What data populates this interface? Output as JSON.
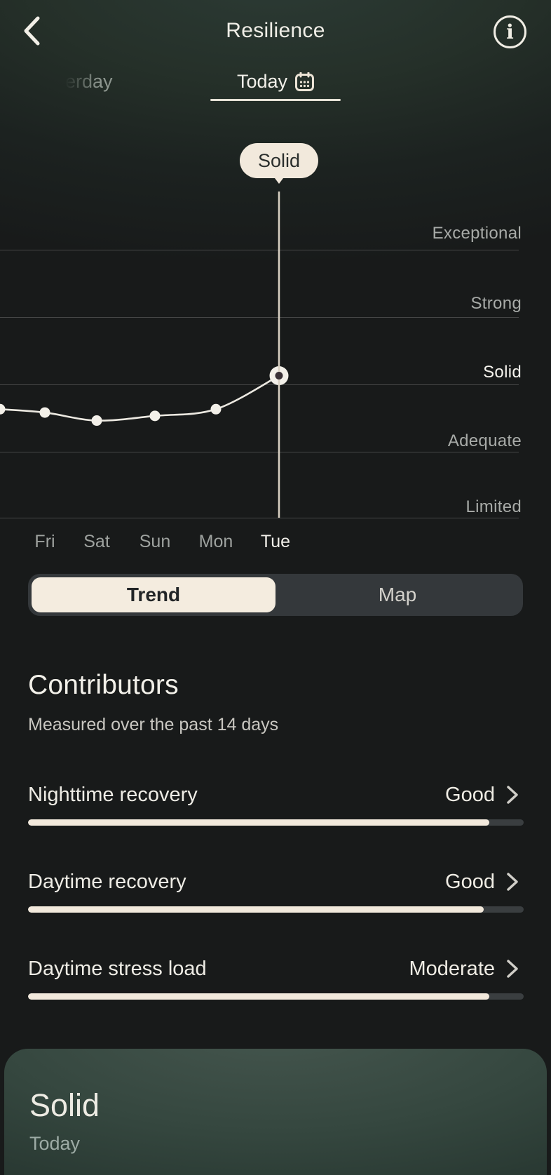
{
  "colors": {
    "background": "#181a1a",
    "header_teal": "#263630",
    "accent_cream": "#f2e9dc",
    "badge_text": "#2b2e2c",
    "gridline": "rgba(255,255,255,0.20)",
    "muted_label": "#a8aba8",
    "active_label": "#f5f3ed",
    "segment_container": "#34383b",
    "bar_track": "#3a3e40",
    "card_gradient_top": "#45564e",
    "card_gradient_bottom": "#1f2b28",
    "active_dot_center": "#3a3136"
  },
  "header": {
    "title": "Resilience"
  },
  "date_nav": {
    "yesterday_partial": "erday",
    "today": "Today"
  },
  "chart_data": {
    "type": "line",
    "badge": "Solid",
    "y_levels": [
      "Exceptional",
      "Strong",
      "Solid",
      "Adequate",
      "Limited"
    ],
    "x": [
      "Fri",
      "Sat",
      "Sun",
      "Mon",
      "Tue"
    ],
    "active_day": "Tue",
    "grid": "horizontal lines, one per level, labels above each line, right-aligned",
    "legend_position": "none",
    "value_scale": "0 = Limited line, 1 = Adequate, 2 = Solid, 3 = Strong, 4 = Exceptional",
    "points": [
      {
        "day": "",
        "value": 1.62,
        "note": "clipped at left edge"
      },
      {
        "day": "Fri",
        "value": 1.57
      },
      {
        "day": "Sat",
        "value": 1.45
      },
      {
        "day": "Sun",
        "value": 1.52
      },
      {
        "day": "Mon",
        "value": 1.62
      },
      {
        "day": "Tue",
        "value": 2.12,
        "active": true,
        "level": "Solid"
      }
    ]
  },
  "view_toggle": {
    "options": [
      "Trend",
      "Map"
    ],
    "selected": "Trend"
  },
  "contributors": {
    "title": "Contributors",
    "subtitle": "Measured over the past 14 days",
    "items": [
      {
        "label": "Nighttime recovery",
        "value": "Good",
        "fill_percent": 93
      },
      {
        "label": "Daytime recovery",
        "value": "Good",
        "fill_percent": 92
      },
      {
        "label": "Daytime stress load",
        "value": "Moderate",
        "fill_percent": 93
      }
    ]
  },
  "summary_card": {
    "level": "Solid",
    "period": "Today"
  }
}
